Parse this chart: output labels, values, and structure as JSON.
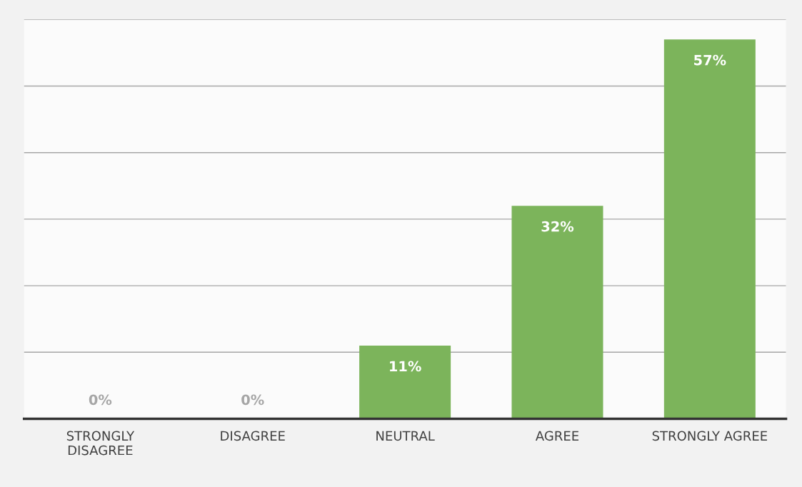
{
  "chart_data": {
    "type": "bar",
    "categories": [
      "STRONGLY\nDISAGREE",
      "DISAGREE",
      "NEUTRAL",
      "AGREE",
      "STRONGLY AGREE"
    ],
    "values": [
      0,
      0,
      11,
      32,
      57
    ],
    "value_labels": [
      "0%",
      "0%",
      "11%",
      "32%",
      "57%"
    ],
    "color": "#7cb45b",
    "ylim": [
      0,
      60
    ],
    "yticks": [
      {
        "value": 0,
        "label": null
      },
      {
        "value": 10,
        "label": null
      },
      {
        "value": 20,
        "label": null
      },
      {
        "value": 30,
        "label": null
      },
      {
        "value": 40,
        "label": null
      },
      {
        "value": 50,
        "label": null
      },
      {
        "value": 60,
        "label": null
      }
    ],
    "grid": "y",
    "tick_labels": "x"
  }
}
